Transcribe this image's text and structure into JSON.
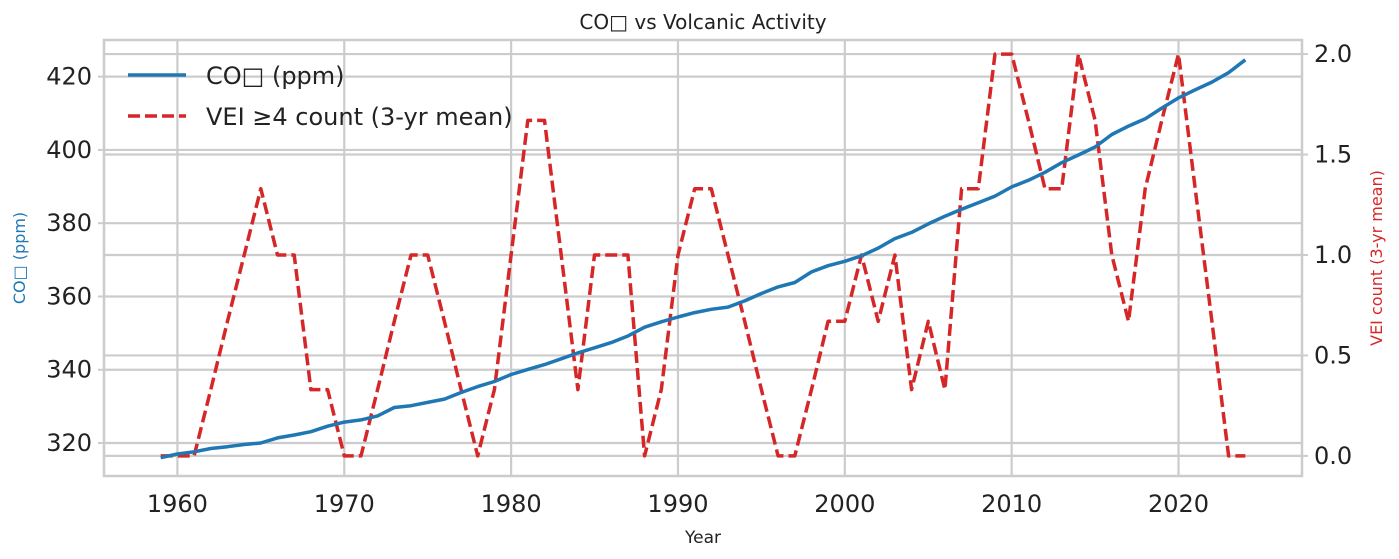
{
  "chart_data": {
    "type": "line",
    "title": "CO□ vs Volcanic Activity",
    "xlabel": "Year",
    "ylabel_left": "CO□ (ppm)",
    "ylabel_right": "VEI count (3-yr mean)",
    "xlim": [
      1955.6,
      2027.4
    ],
    "ylim_left": [
      311,
      430
    ],
    "ylim_right": [
      -0.1,
      2.07
    ],
    "x_ticks": [
      1960,
      1970,
      1980,
      1990,
      2000,
      2010,
      2020
    ],
    "y_left_ticks": [
      320,
      340,
      360,
      380,
      400,
      420
    ],
    "y_right_ticks": [
      0.0,
      0.5,
      1.0,
      1.5,
      2.0
    ],
    "y_right_tick_labels": [
      "0.0",
      "0.5",
      "1.0",
      "1.5",
      "2.0"
    ],
    "grid": true,
    "legend_position": "upper-left",
    "series": [
      {
        "name": "CO□ (ppm)",
        "axis": "left",
        "color": "#1f77b4",
        "style": "solid",
        "x": [
          1959,
          1960,
          1961,
          1962,
          1963,
          1964,
          1965,
          1966,
          1967,
          1968,
          1969,
          1970,
          1971,
          1972,
          1973,
          1974,
          1975,
          1976,
          1977,
          1978,
          1979,
          1980,
          1981,
          1982,
          1983,
          1984,
          1985,
          1986,
          1987,
          1988,
          1989,
          1990,
          1991,
          1992,
          1993,
          1994,
          1995,
          1996,
          1997,
          1998,
          1999,
          2000,
          2001,
          2002,
          2003,
          2004,
          2005,
          2006,
          2007,
          2008,
          2009,
          2010,
          2011,
          2012,
          2013,
          2014,
          2015,
          2016,
          2017,
          2018,
          2019,
          2020,
          2021,
          2022,
          2023,
          2024
        ],
        "values": [
          316.0,
          317.0,
          317.6,
          318.5,
          319.0,
          319.6,
          320.0,
          321.4,
          322.2,
          323.1,
          324.6,
          325.7,
          326.3,
          327.4,
          329.7,
          330.2,
          331.1,
          332.0,
          333.8,
          335.4,
          336.8,
          338.7,
          340.1,
          341.4,
          343.0,
          344.6,
          346.0,
          347.4,
          349.2,
          351.6,
          353.1,
          354.4,
          355.6,
          356.5,
          357.1,
          358.8,
          360.8,
          362.6,
          363.8,
          366.7,
          368.4,
          369.6,
          371.1,
          373.2,
          375.8,
          377.5,
          379.8,
          381.9,
          383.8,
          385.6,
          387.4,
          389.9,
          391.7,
          393.9,
          396.5,
          398.6,
          400.8,
          404.2,
          406.5,
          408.5,
          411.4,
          414.2,
          416.4,
          418.5,
          421.1,
          424.6
        ]
      },
      {
        "name": "VEI ≥4 count (3-yr mean)",
        "axis": "right",
        "color": "#d62728",
        "style": "dashed",
        "x": [
          1959,
          1960,
          1961,
          1962,
          1963,
          1964,
          1965,
          1966,
          1967,
          1968,
          1969,
          1970,
          1971,
          1972,
          1973,
          1974,
          1975,
          1976,
          1977,
          1978,
          1979,
          1980,
          1981,
          1982,
          1983,
          1984,
          1985,
          1986,
          1987,
          1988,
          1989,
          1990,
          1991,
          1992,
          1993,
          1994,
          1995,
          1996,
          1997,
          1998,
          1999,
          2000,
          2001,
          2002,
          2003,
          2004,
          2005,
          2006,
          2007,
          2008,
          2009,
          2010,
          2011,
          2012,
          2013,
          2014,
          2015,
          2016,
          2017,
          2018,
          2019,
          2020,
          2021,
          2022,
          2023,
          2024
        ],
        "values": [
          0.0,
          0.0,
          0.0,
          0.33,
          0.67,
          1.0,
          1.33,
          1.0,
          1.0,
          0.33,
          0.33,
          0.0,
          0.0,
          0.33,
          0.67,
          1.0,
          1.0,
          0.67,
          0.33,
          0.0,
          0.33,
          1.0,
          1.67,
          1.67,
          1.0,
          0.33,
          1.0,
          1.0,
          1.0,
          0.0,
          0.33,
          1.0,
          1.33,
          1.33,
          1.0,
          0.67,
          0.33,
          0.0,
          0.0,
          0.33,
          0.67,
          0.67,
          1.0,
          0.67,
          1.0,
          0.33,
          0.67,
          0.33,
          1.33,
          1.33,
          2.0,
          2.0,
          1.67,
          1.33,
          1.33,
          2.0,
          1.67,
          1.0,
          0.67,
          1.33,
          1.67,
          2.0,
          1.33,
          0.67,
          0.0,
          0.0
        ]
      }
    ]
  }
}
